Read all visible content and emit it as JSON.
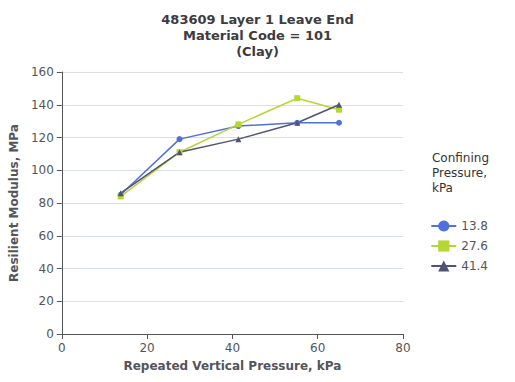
{
  "chart_data": {
    "type": "line",
    "title": "483609 Layer 1 Leave End\nMaterial Code = 101\n(Clay)",
    "x_label": "Repeated Vertical Pressure, kPa",
    "y_label": "Resilient Modulus, MPa",
    "legend_title": "Confining\nPressure,\nkPa",
    "x": [
      13.8,
      27.6,
      41.4,
      55.2,
      65.0
    ],
    "series": [
      {
        "name": "13.8",
        "values": [
          85,
          119,
          127,
          129,
          129
        ],
        "marker": "circle"
      },
      {
        "name": "27.6",
        "values": [
          84,
          111,
          128,
          144,
          137
        ],
        "marker": "square"
      },
      {
        "name": "41.4",
        "values": [
          86,
          111,
          119,
          129,
          140
        ],
        "marker": "triangle"
      }
    ],
    "xlim": [
      0,
      80
    ],
    "xticks": [
      0,
      20,
      40,
      60,
      80
    ],
    "ylim": [
      0,
      160
    ],
    "yticks": [
      0,
      20,
      40,
      60,
      80,
      100,
      120,
      140,
      160
    ],
    "grid": true,
    "legend": "right"
  }
}
